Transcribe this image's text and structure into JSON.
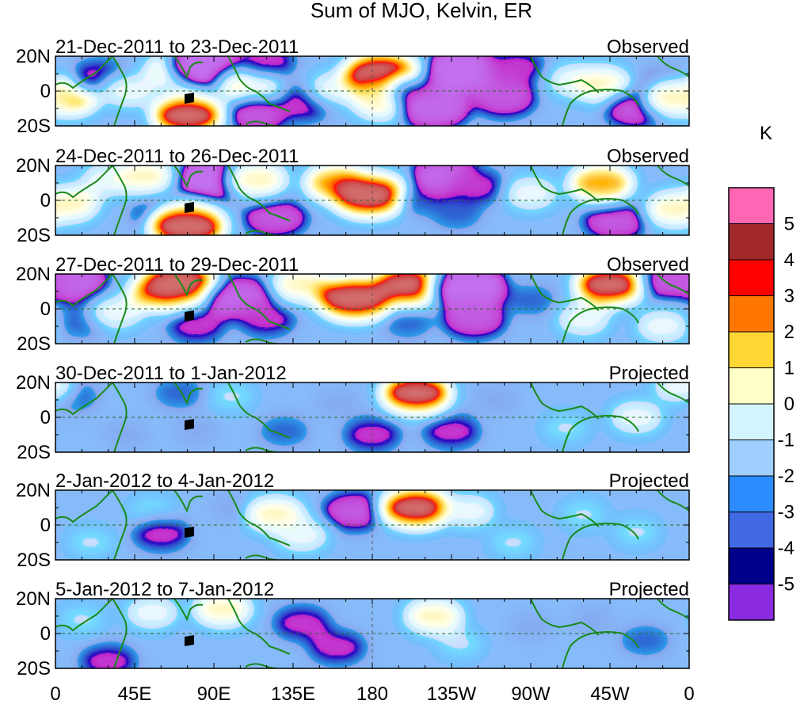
{
  "title": "Sum of MJO, Kelvin, ER",
  "chart_data": {
    "type": "heatmap",
    "title": "Sum of MJO, Kelvin, ER",
    "units": "K",
    "x_ticks": [
      "0",
      "45E",
      "90E",
      "135E",
      "180",
      "135W",
      "90W",
      "45W",
      "0"
    ],
    "y_ticks": [
      "20N",
      "0",
      "20S"
    ],
    "xlim_deg_east": [
      0,
      360
    ],
    "ylim_deg": [
      -20,
      20
    ],
    "levels": [
      -5,
      -4,
      -3,
      -2,
      -1,
      0,
      1,
      2,
      3,
      4,
      5
    ],
    "colorbar": {
      "label": "K",
      "ticks": [
        "5",
        "4",
        "3",
        "2",
        "1",
        "0",
        "-1",
        "-2",
        "-3",
        "-4",
        "-5"
      ],
      "colors": [
        "#ff66b3",
        "#a02828",
        "#ff0000",
        "#ff7700",
        "#ffd633",
        "#ffffc8",
        "#d4f4ff",
        "#a0cfff",
        "#2b8cff",
        "#4169e1",
        "#00008b",
        "#8a2be2"
      ]
    },
    "panels": [
      {
        "dates": "21-Dec-2011 to 23-Dec-2011",
        "status": "Observed",
        "features": [
          {
            "lon": 7,
            "lat": -3,
            "v": 4
          },
          {
            "lon": 25,
            "lat": 8,
            "v": -3
          },
          {
            "lon": 42,
            "lat": 0,
            "v": 2
          },
          {
            "lon": 68,
            "lat": 12,
            "v": 3
          },
          {
            "lon": 85,
            "lat": 15,
            "v": -6
          },
          {
            "lon": 75,
            "lat": -14,
            "v": 5
          },
          {
            "lon": 110,
            "lat": 2,
            "v": 3
          },
          {
            "lon": 115,
            "lat": -13,
            "v": -4
          },
          {
            "lon": 120,
            "lat": 17,
            "v": -3
          },
          {
            "lon": 140,
            "lat": -8,
            "v": -3
          },
          {
            "lon": 160,
            "lat": 2,
            "v": 2
          },
          {
            "lon": 185,
            "lat": 10,
            "v": 6
          },
          {
            "lon": 185,
            "lat": -6,
            "v": 3
          },
          {
            "lon": 205,
            "lat": 0,
            "v": -2
          },
          {
            "lon": 215,
            "lat": -10,
            "v": -5
          },
          {
            "lon": 232,
            "lat": 12,
            "v": -6
          },
          {
            "lon": 255,
            "lat": -4,
            "v": -4
          },
          {
            "lon": 262,
            "lat": 14,
            "v": -3
          },
          {
            "lon": 295,
            "lat": 6,
            "v": 2
          },
          {
            "lon": 310,
            "lat": 4,
            "v": 3
          },
          {
            "lon": 330,
            "lat": -10,
            "v": -4
          },
          {
            "lon": 345,
            "lat": 5,
            "v": -2
          },
          {
            "lon": 352,
            "lat": -4,
            "v": 3
          }
        ]
      },
      {
        "dates": "24-Dec-2011 to 26-Dec-2011",
        "status": "Observed",
        "features": [
          {
            "lon": 8,
            "lat": -2,
            "v": 3
          },
          {
            "lon": 30,
            "lat": 12,
            "v": 2
          },
          {
            "lon": 50,
            "lat": 14,
            "v": 3
          },
          {
            "lon": 60,
            "lat": -8,
            "v": -3
          },
          {
            "lon": 75,
            "lat": -15,
            "v": 6
          },
          {
            "lon": 90,
            "lat": 12,
            "v": -6
          },
          {
            "lon": 115,
            "lat": 12,
            "v": 3
          },
          {
            "lon": 125,
            "lat": -10,
            "v": -4
          },
          {
            "lon": 160,
            "lat": 10,
            "v": 4
          },
          {
            "lon": 178,
            "lat": 3,
            "v": 6
          },
          {
            "lon": 210,
            "lat": 0,
            "v": -2
          },
          {
            "lon": 222,
            "lat": 14,
            "v": -5
          },
          {
            "lon": 240,
            "lat": 8,
            "v": -3
          },
          {
            "lon": 228,
            "lat": -8,
            "v": -2
          },
          {
            "lon": 270,
            "lat": 4,
            "v": 2
          },
          {
            "lon": 310,
            "lat": 10,
            "v": 4
          },
          {
            "lon": 318,
            "lat": -12,
            "v": -4
          },
          {
            "lon": 352,
            "lat": -5,
            "v": 3
          }
        ]
      },
      {
        "dates": "27-Dec-2011 to 29-Dec-2011",
        "status": "Observed",
        "features": [
          {
            "lon": 10,
            "lat": 15,
            "v": -5
          },
          {
            "lon": 15,
            "lat": -8,
            "v": -2
          },
          {
            "lon": 35,
            "lat": -2,
            "v": 2
          },
          {
            "lon": 60,
            "lat": 10,
            "v": 4
          },
          {
            "lon": 70,
            "lat": 15,
            "v": 6
          },
          {
            "lon": 80,
            "lat": -10,
            "v": -3
          },
          {
            "lon": 105,
            "lat": 6,
            "v": -5
          },
          {
            "lon": 120,
            "lat": -6,
            "v": -3
          },
          {
            "lon": 140,
            "lat": 14,
            "v": 3
          },
          {
            "lon": 170,
            "lat": 6,
            "v": 6
          },
          {
            "lon": 200,
            "lat": 14,
            "v": 5
          },
          {
            "lon": 200,
            "lat": -8,
            "v": -2
          },
          {
            "lon": 235,
            "lat": 12,
            "v": -6
          },
          {
            "lon": 238,
            "lat": -6,
            "v": -4
          },
          {
            "lon": 270,
            "lat": 5,
            "v": -2
          },
          {
            "lon": 300,
            "lat": -6,
            "v": 2
          },
          {
            "lon": 315,
            "lat": 14,
            "v": 5
          },
          {
            "lon": 350,
            "lat": 16,
            "v": -4
          },
          {
            "lon": 345,
            "lat": -10,
            "v": 2
          }
        ]
      },
      {
        "dates": "30-Dec-2011 to 1-Jan-2012",
        "status": "Projected",
        "features": [
          {
            "lon": 10,
            "lat": 12,
            "v": -2
          },
          {
            "lon": 40,
            "lat": -10,
            "v": -1
          },
          {
            "lon": 70,
            "lat": 14,
            "v": -2
          },
          {
            "lon": 80,
            "lat": -8,
            "v": -1
          },
          {
            "lon": 100,
            "lat": 12,
            "v": 1
          },
          {
            "lon": 130,
            "lat": -8,
            "v": -2
          },
          {
            "lon": 160,
            "lat": 8,
            "v": -1
          },
          {
            "lon": 180,
            "lat": -10,
            "v": -3
          },
          {
            "lon": 205,
            "lat": 14,
            "v": 5
          },
          {
            "lon": 225,
            "lat": -8,
            "v": -3
          },
          {
            "lon": 250,
            "lat": 10,
            "v": -1
          },
          {
            "lon": 290,
            "lat": -6,
            "v": 1
          },
          {
            "lon": 330,
            "lat": 0,
            "v": 2
          },
          {
            "lon": 355,
            "lat": 18,
            "v": 2
          }
        ]
      },
      {
        "dates": "2-Jan-2012 to 4-Jan-2012",
        "status": "Projected",
        "features": [
          {
            "lon": 20,
            "lat": -10,
            "v": 1
          },
          {
            "lon": 55,
            "lat": 8,
            "v": 1
          },
          {
            "lon": 60,
            "lat": -5,
            "v": -3
          },
          {
            "lon": 100,
            "lat": 10,
            "v": -1
          },
          {
            "lon": 125,
            "lat": 6,
            "v": 3
          },
          {
            "lon": 140,
            "lat": -6,
            "v": 2
          },
          {
            "lon": 170,
            "lat": 8,
            "v": -4
          },
          {
            "lon": 205,
            "lat": 10,
            "v": 5
          },
          {
            "lon": 235,
            "lat": 8,
            "v": 2
          },
          {
            "lon": 260,
            "lat": -10,
            "v": 1
          },
          {
            "lon": 300,
            "lat": 6,
            "v": 1
          },
          {
            "lon": 330,
            "lat": -4,
            "v": 1
          }
        ]
      },
      {
        "dates": "5-Jan-2012 to 7-Jan-2012",
        "status": "Projected",
        "features": [
          {
            "lon": 15,
            "lat": 8,
            "v": 1
          },
          {
            "lon": 30,
            "lat": -16,
            "v": -3
          },
          {
            "lon": 55,
            "lat": 12,
            "v": 2
          },
          {
            "lon": 95,
            "lat": 14,
            "v": 3
          },
          {
            "lon": 140,
            "lat": 6,
            "v": -3
          },
          {
            "lon": 160,
            "lat": -8,
            "v": -3
          },
          {
            "lon": 215,
            "lat": 10,
            "v": 3
          },
          {
            "lon": 230,
            "lat": -6,
            "v": 1
          },
          {
            "lon": 270,
            "lat": 4,
            "v": -1
          },
          {
            "lon": 305,
            "lat": 8,
            "v": -1
          },
          {
            "lon": 335,
            "lat": -4,
            "v": -2
          }
        ]
      }
    ]
  }
}
